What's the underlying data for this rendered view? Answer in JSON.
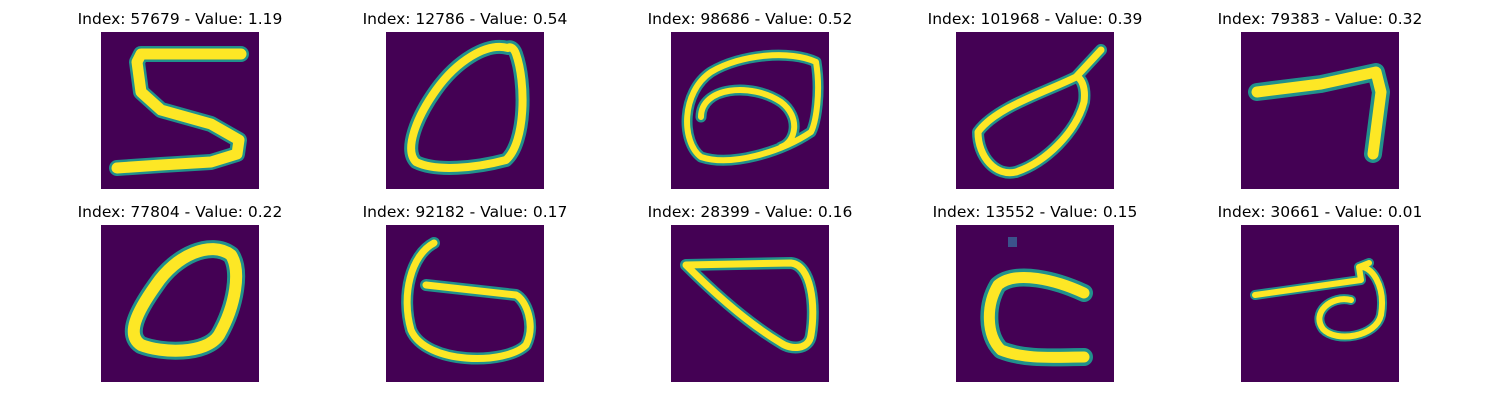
{
  "colormap": {
    "background": "#440154",
    "low": "#3b528b",
    "mid": "#21918c",
    "high": "#fde725",
    "accent": "#5ec962"
  },
  "panels": [
    {
      "title": "Index: 57679 - Value: 1.19",
      "index": 57679,
      "value": 1.19,
      "digit_shape": "five"
    },
    {
      "title": "Index: 12786 - Value: 0.54",
      "index": 12786,
      "value": 0.54,
      "digit_shape": "zero"
    },
    {
      "title": "Index: 98686 - Value: 0.52",
      "index": 98686,
      "value": 0.52,
      "digit_shape": "loop-scribble"
    },
    {
      "title": "Index: 101968 - Value: 0.39",
      "index": 101968,
      "value": 0.39,
      "digit_shape": "leaf-loop"
    },
    {
      "title": "Index: 79383 - Value: 0.32",
      "index": 79383,
      "value": 0.32,
      "digit_shape": "seven"
    },
    {
      "title": "Index: 77804 - Value: 0.22",
      "index": 77804,
      "value": 0.22,
      "digit_shape": "zero"
    },
    {
      "title": "Index: 92182 - Value: 0.17",
      "index": 92182,
      "value": 0.17,
      "digit_shape": "six"
    },
    {
      "title": "Index: 28399 - Value: 0.16",
      "index": 28399,
      "value": 0.16,
      "digit_shape": "triangle-loop"
    },
    {
      "title": "Index: 13552 - Value: 0.15",
      "index": 13552,
      "value": 0.15,
      "digit_shape": "c-shape"
    },
    {
      "title": "Index: 30661 - Value: 0.01",
      "index": 30661,
      "value": 0.01,
      "digit_shape": "seven-loop"
    }
  ]
}
